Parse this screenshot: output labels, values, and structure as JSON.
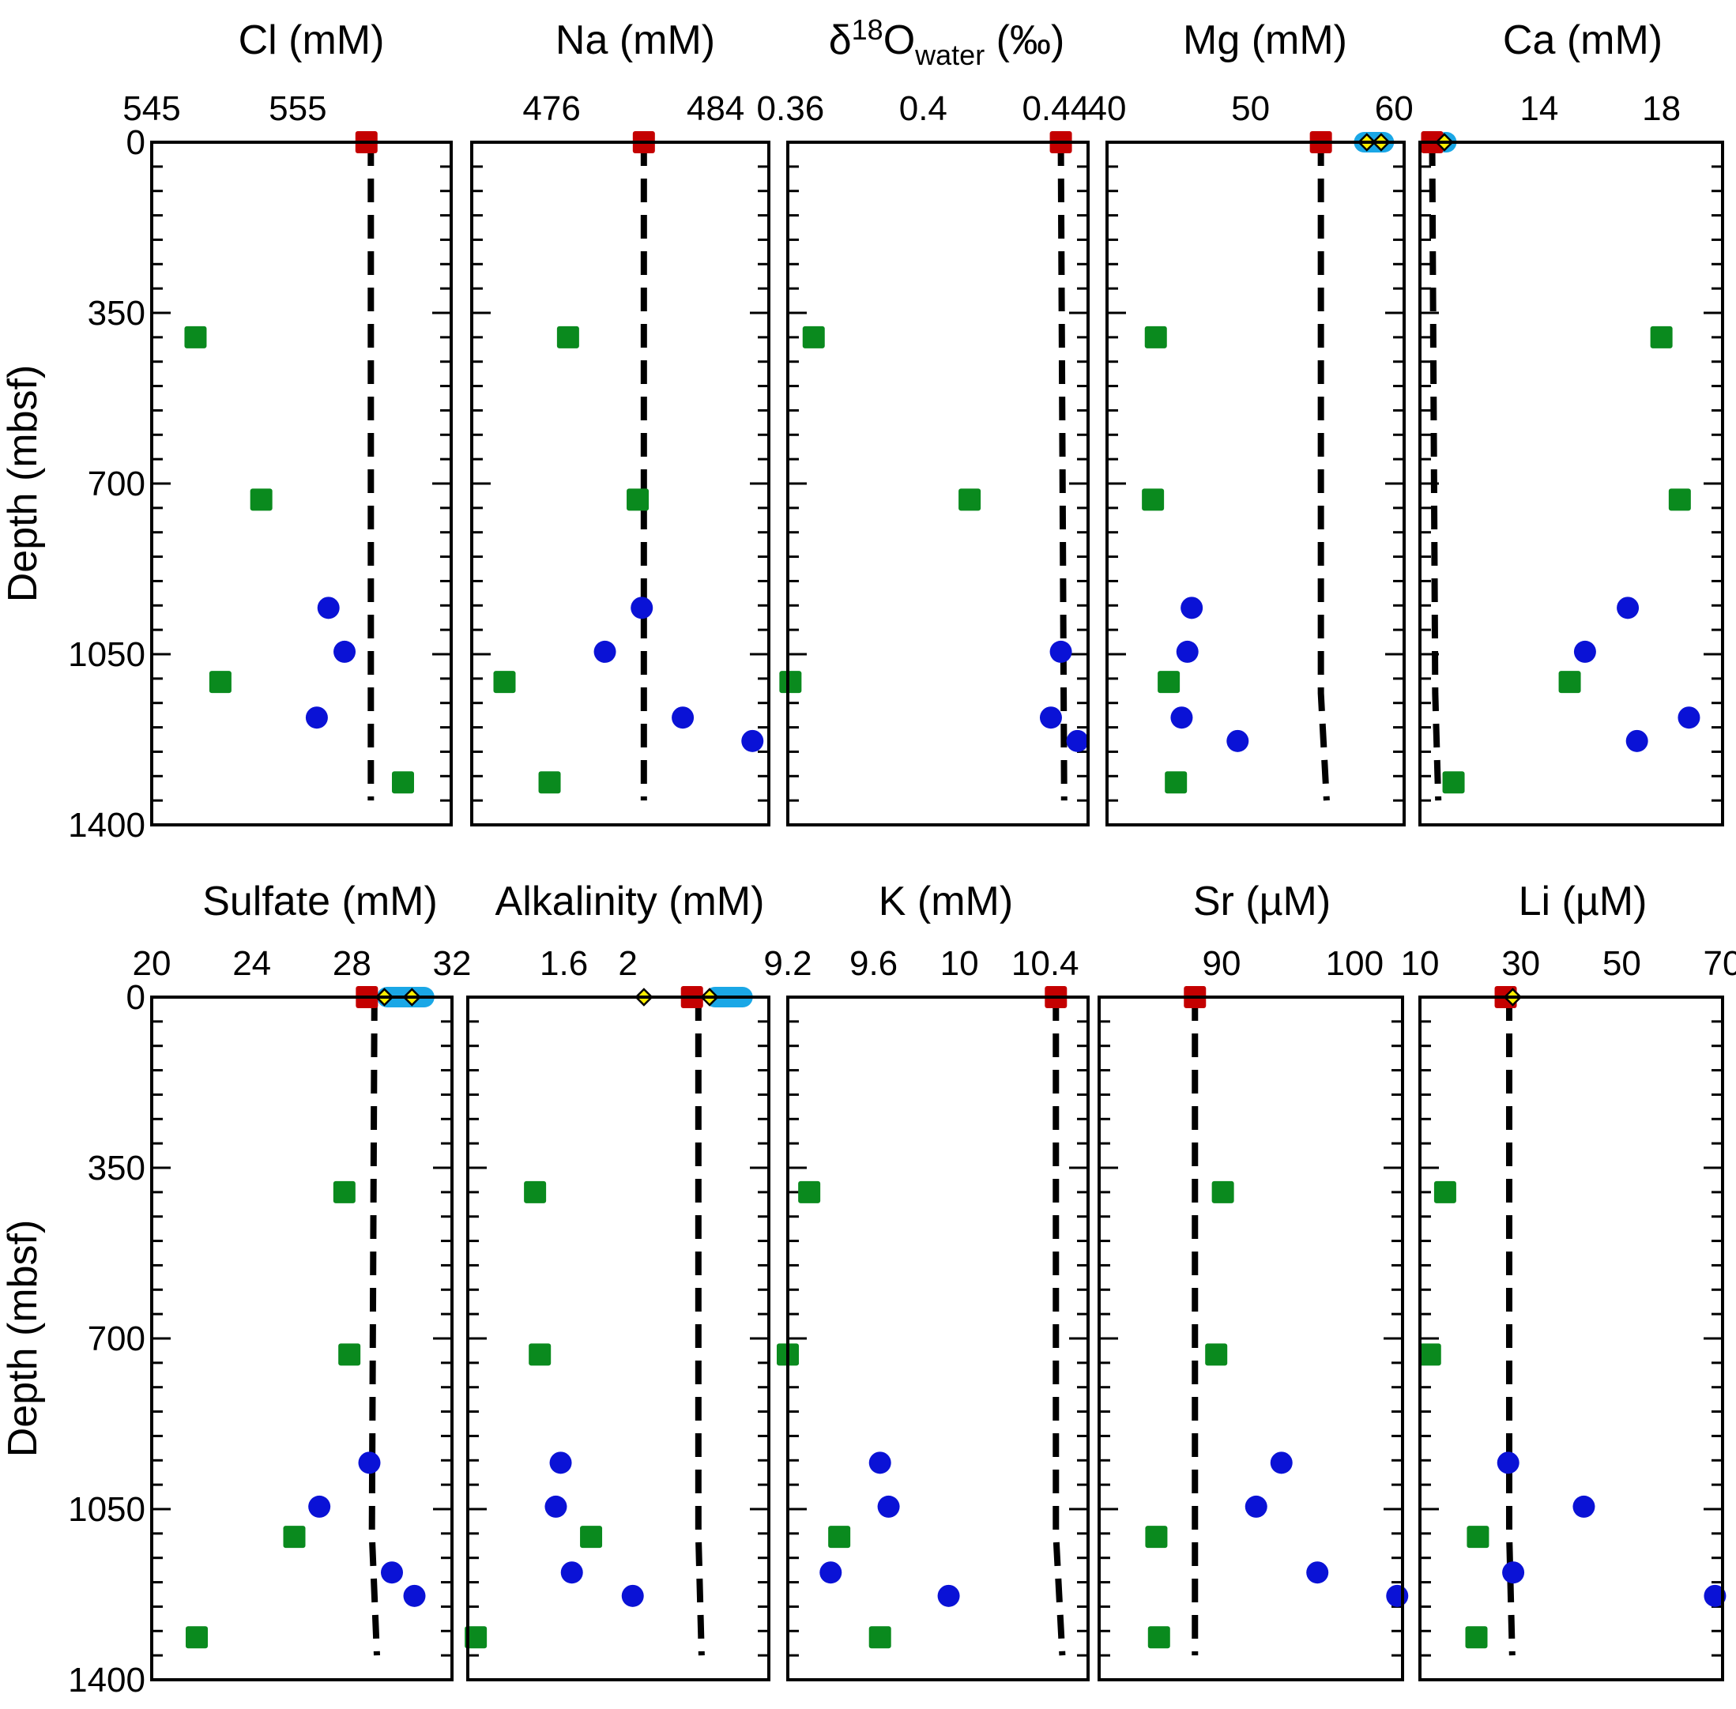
{
  "chart_data": {
    "type": "scatter",
    "ylabel": "Depth (mbsf)",
    "ylim": [
      0,
      1400
    ],
    "ytick_labels": [
      "0",
      "350",
      "700",
      "1050",
      "1400"
    ],
    "colors": {
      "green_square": "#0a8a1e",
      "blue_circle": "#0a12d6",
      "red_square": "#c40000",
      "yellow_diamond": "#ffef00",
      "cyan_band": "#1aa7e6",
      "dashed_line": "#000000"
    },
    "panels": [
      {
        "title": "Cl (mM)",
        "xlim": [
          545,
          565.5
        ],
        "xticks": [
          {
            "v": 545,
            "label": "545"
          },
          {
            "v": 555,
            "label": "555"
          }
        ],
        "green": [
          [
            548,
            400
          ],
          [
            552.5,
            733
          ],
          [
            549.7,
            1107
          ],
          [
            562.2,
            1313
          ]
        ],
        "blue": [
          [
            557.1,
            955
          ],
          [
            558.2,
            1045
          ],
          [
            556.3,
            1180
          ]
        ],
        "red": [
          [
            559.7,
            0
          ]
        ],
        "yellow": [],
        "band": null,
        "dashed": [
          [
            560,
            0
          ],
          [
            560,
            1350
          ]
        ]
      },
      {
        "title": "Na (mM)",
        "xlim": [
          472.1,
          486.6
        ],
        "xticks": [
          {
            "v": 476,
            "label": "476"
          },
          {
            "v": 484,
            "label": "484"
          }
        ],
        "green": [
          [
            476.8,
            400
          ],
          [
            480.2,
            733
          ],
          [
            473.7,
            1107
          ],
          [
            475.9,
            1313
          ]
        ],
        "blue": [
          [
            480.4,
            955
          ],
          [
            478.6,
            1045
          ],
          [
            482.4,
            1180
          ],
          [
            485.8,
            1228
          ]
        ],
        "red": [
          [
            480.5,
            0
          ]
        ],
        "yellow": [],
        "band": null,
        "dashed": [
          [
            480.5,
            0
          ],
          [
            480.5,
            1350
          ]
        ]
      },
      {
        "title": "δ18Owater (‰)",
        "xlim": [
          0.3592,
          0.4497
        ],
        "xticks": [
          {
            "v": 0.36,
            "label": "0.36"
          },
          {
            "v": 0.4,
            "label": "0.4"
          },
          {
            "v": 0.44,
            "label": "0.44"
          }
        ],
        "green": [
          [
            0.367,
            400
          ],
          [
            0.414,
            733
          ],
          [
            0.36,
            1107
          ]
        ],
        "blue": [
          [
            0.4415,
            1045
          ],
          [
            0.4385,
            1180
          ],
          [
            0.4465,
            1228
          ]
        ],
        "red": [
          [
            0.4415,
            0
          ]
        ],
        "yellow": [],
        "band": null,
        "dashed": [
          [
            0.4415,
            0
          ],
          [
            0.4425,
            1350
          ]
        ]
      },
      {
        "title": "Mg (mM)",
        "xlim": [
          40,
          60.7
        ],
        "xticks": [
          {
            "v": 40,
            "label": "40"
          },
          {
            "v": 50,
            "label": "50"
          },
          {
            "v": 60,
            "label": "60"
          }
        ],
        "green": [
          [
            43.4,
            400
          ],
          [
            43.2,
            733
          ],
          [
            44.3,
            1107
          ],
          [
            44.8,
            1313
          ]
        ],
        "blue": [
          [
            45.9,
            955
          ],
          [
            45.6,
            1045
          ],
          [
            45.2,
            1180
          ],
          [
            49.1,
            1228
          ]
        ],
        "red": [
          [
            54.9,
            0
          ]
        ],
        "yellow": [
          [
            58.1,
            0
          ],
          [
            59.1,
            0
          ]
        ],
        "band": [
          57.2,
          60.0
        ],
        "dashed": [
          [
            54.9,
            0
          ],
          [
            54.9,
            1130
          ],
          [
            55.3,
            1350
          ]
        ]
      },
      {
        "title": "Ca (mM)",
        "xlim": [
          10.1,
          20
        ],
        "xticks": [
          {
            "v": 14,
            "label": "14"
          },
          {
            "v": 18,
            "label": "18"
          }
        ],
        "green": [
          [
            18.0,
            400
          ],
          [
            18.6,
            733
          ],
          [
            15.0,
            1107
          ],
          [
            11.2,
            1313
          ]
        ],
        "blue": [
          [
            16.9,
            955
          ],
          [
            15.5,
            1045
          ],
          [
            18.9,
            1180
          ],
          [
            17.2,
            1228
          ]
        ],
        "red": [
          [
            10.5,
            0
          ]
        ],
        "yellow": [
          [
            10.9,
            0
          ]
        ],
        "band": [
          10.6,
          11.3
        ],
        "dashed": [
          [
            10.5,
            0
          ],
          [
            10.6,
            1130
          ],
          [
            10.7,
            1350
          ]
        ]
      },
      {
        "title": "Sulfate (mM)",
        "xlim": [
          20,
          32
        ],
        "xticks": [
          {
            "v": 20,
            "label": "20"
          },
          {
            "v": 24,
            "label": "24"
          },
          {
            "v": 28,
            "label": "28"
          },
          {
            "v": 32,
            "label": "32"
          }
        ],
        "green": [
          [
            27.7,
            400
          ],
          [
            27.9,
            733
          ],
          [
            25.7,
            1107
          ],
          [
            21.8,
            1313
          ]
        ],
        "blue": [
          [
            28.7,
            955
          ],
          [
            26.7,
            1045
          ],
          [
            29.6,
            1180
          ],
          [
            30.5,
            1228
          ]
        ],
        "red": [
          [
            28.6,
            0
          ]
        ],
        "yellow": [
          [
            29.3,
            0
          ],
          [
            30.4,
            0
          ]
        ],
        "band": [
          29.0,
          31.3
        ],
        "dashed": [
          [
            28.9,
            0
          ],
          [
            28.8,
            1100
          ],
          [
            29.0,
            1350
          ]
        ]
      },
      {
        "title": "Alkalinity (mM)",
        "xlim": [
          1.0,
          2.88
        ],
        "xticks": [
          {
            "v": 1.6,
            "label": "1.6"
          },
          {
            "v": 2,
            "label": "2"
          }
        ],
        "green": [
          [
            1.42,
            400
          ],
          [
            1.45,
            733
          ],
          [
            1.77,
            1107
          ],
          [
            1.05,
            1313
          ]
        ],
        "blue": [
          [
            1.58,
            955
          ],
          [
            1.55,
            1045
          ],
          [
            1.65,
            1180
          ],
          [
            2.03,
            1228
          ]
        ],
        "red": [
          [
            2.4,
            0
          ]
        ],
        "yellow": [
          [
            2.1,
            0
          ],
          [
            2.51,
            0
          ]
        ],
        "band": [
          2.48,
          2.78
        ],
        "dashed": [
          [
            2.44,
            0
          ],
          [
            2.44,
            1100
          ],
          [
            2.46,
            1350
          ]
        ]
      },
      {
        "title": "K (mM)",
        "xlim": [
          9.2,
          10.6
        ],
        "xticks": [
          {
            "v": 9.2,
            "label": "9.2"
          },
          {
            "v": 9.6,
            "label": "9.6"
          },
          {
            "v": 10,
            "label": "10"
          },
          {
            "v": 10.4,
            "label": "10.4"
          }
        ],
        "green": [
          [
            9.3,
            400
          ],
          [
            9.2,
            733
          ],
          [
            9.44,
            1107
          ],
          [
            9.63,
            1313
          ]
        ],
        "blue": [
          [
            9.63,
            955
          ],
          [
            9.67,
            1045
          ],
          [
            9.4,
            1180
          ],
          [
            9.95,
            1228
          ]
        ],
        "red": [
          [
            10.45,
            0
          ]
        ],
        "yellow": [],
        "band": null,
        "dashed": [
          [
            10.45,
            0
          ],
          [
            10.45,
            1100
          ],
          [
            10.48,
            1350
          ]
        ]
      },
      {
        "title": "Sr (µM)",
        "xlim": [
          80.8,
          103.6
        ],
        "xticks": [
          {
            "v": 90,
            "label": "90"
          },
          {
            "v": 100,
            "label": "100"
          }
        ],
        "green": [
          [
            90.1,
            400
          ],
          [
            89.6,
            733
          ],
          [
            85.1,
            1107
          ],
          [
            85.3,
            1313
          ]
        ],
        "blue": [
          [
            94.5,
            955
          ],
          [
            92.6,
            1045
          ],
          [
            97.2,
            1180
          ],
          [
            103.2,
            1228
          ]
        ],
        "red": [
          [
            88,
            0
          ]
        ],
        "yellow": [],
        "band": null,
        "dashed": [
          [
            88,
            0
          ],
          [
            88,
            1350
          ]
        ]
      },
      {
        "title": "Li (µM)",
        "xlim": [
          10,
          70
        ],
        "xticks": [
          {
            "v": 10,
            "label": "10"
          },
          {
            "v": 30,
            "label": "30"
          },
          {
            "v": 50,
            "label": "50"
          },
          {
            "v": 70,
            "label": "70"
          }
        ],
        "green": [
          [
            15,
            400
          ],
          [
            12,
            733
          ],
          [
            21.5,
            1107
          ],
          [
            21.2,
            1313
          ]
        ],
        "blue": [
          [
            27.5,
            955
          ],
          [
            42.5,
            1045
          ],
          [
            28.5,
            1180
          ],
          [
            68.5,
            1228
          ]
        ],
        "red": [
          [
            27,
            0
          ]
        ],
        "yellow": [
          [
            28.4,
            0
          ]
        ],
        "band": null,
        "dashed": [
          [
            27.7,
            0
          ],
          [
            27.7,
            1100
          ],
          [
            28.3,
            1350
          ]
        ]
      }
    ]
  }
}
